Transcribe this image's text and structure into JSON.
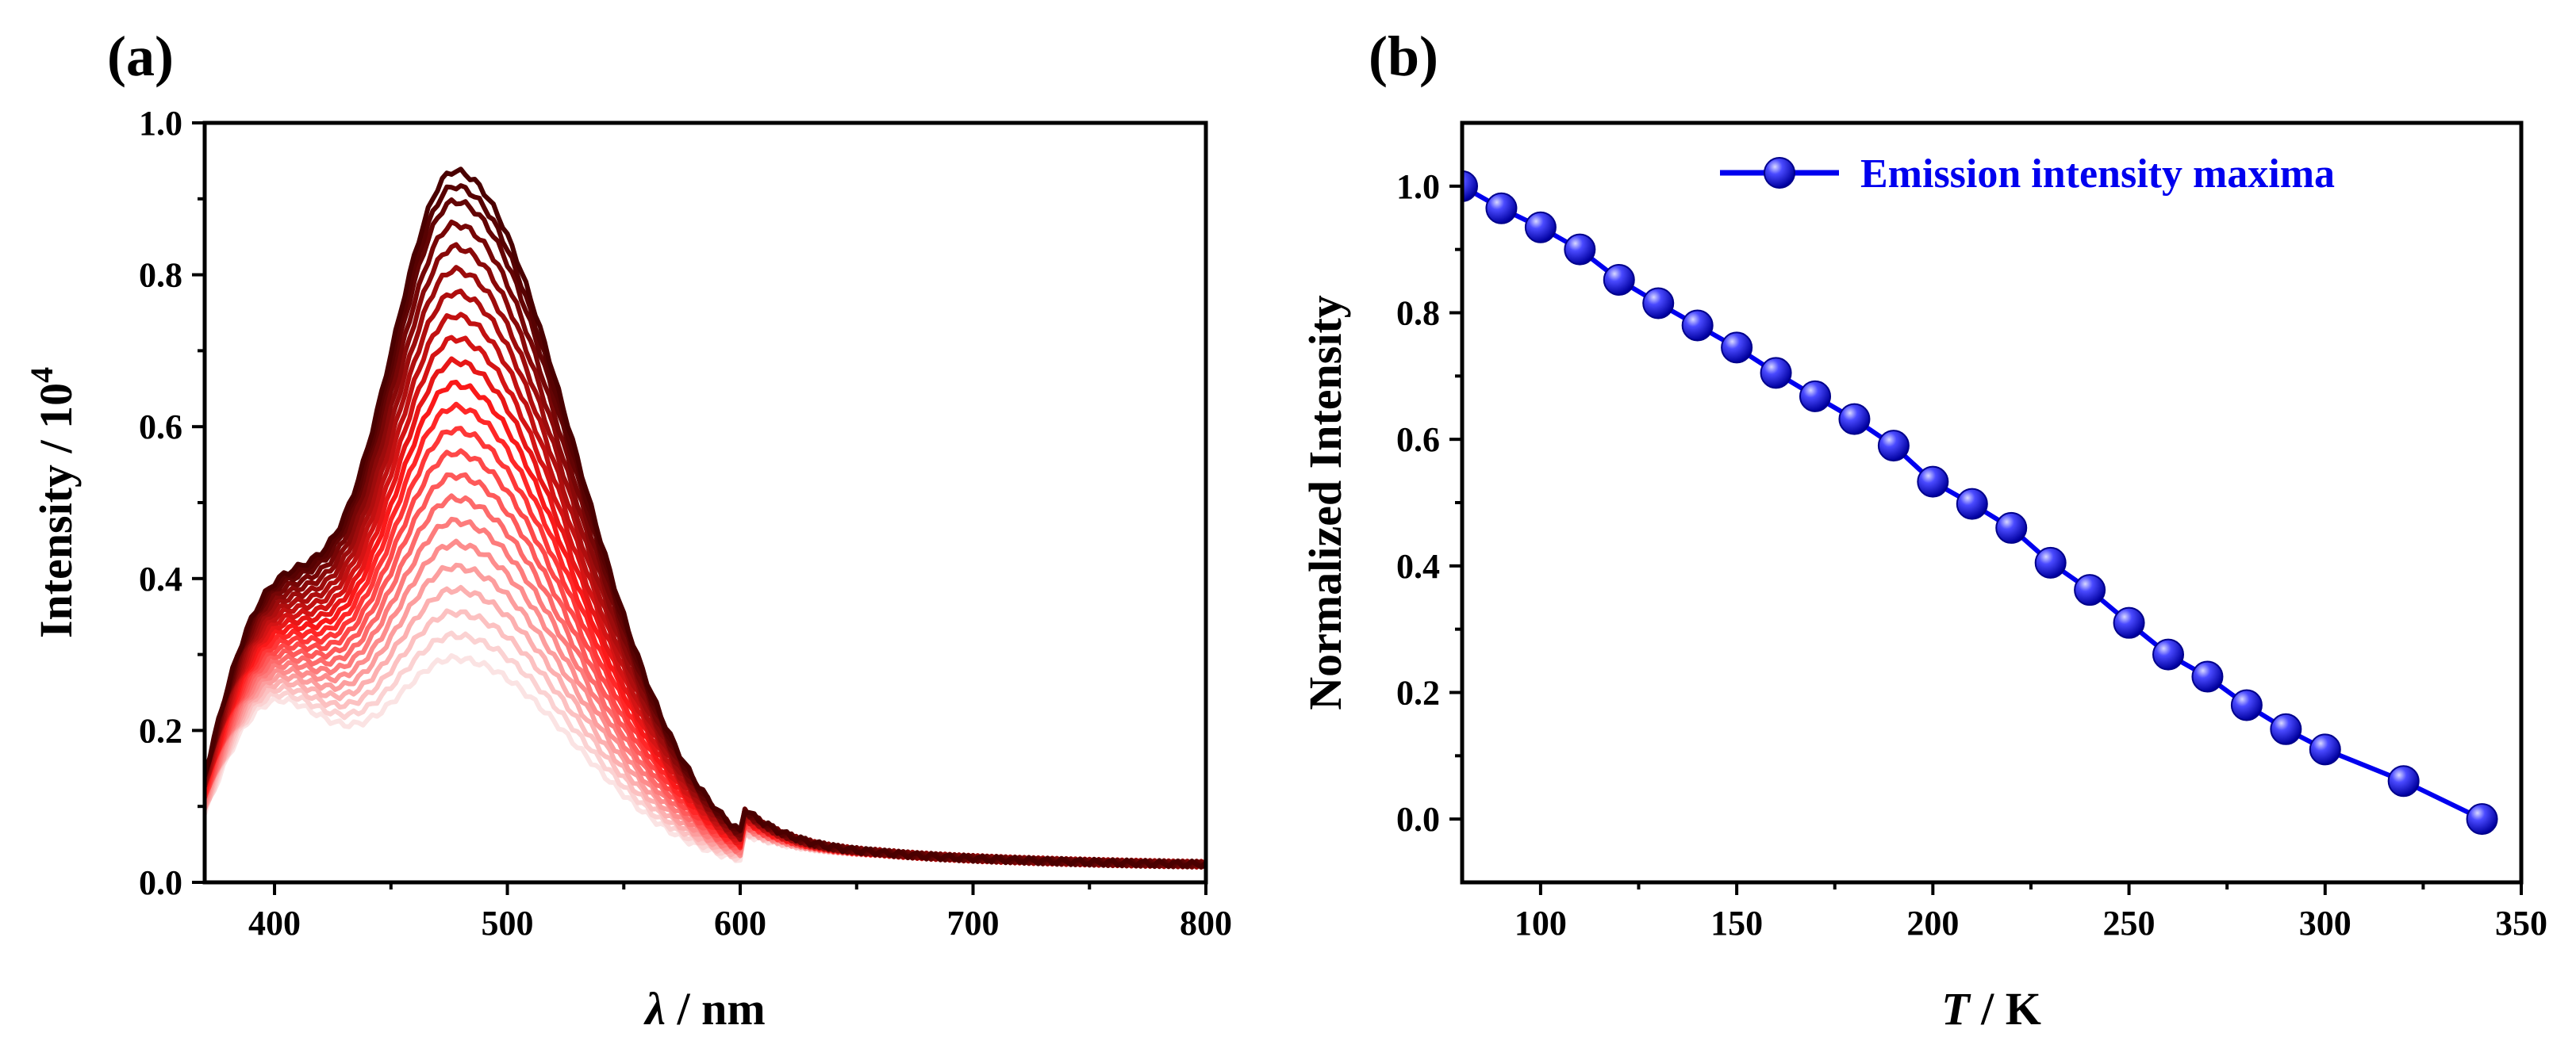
{
  "chart_data": [
    {
      "panel": "(a)",
      "type": "line",
      "title": "",
      "xlabel_symbol": "λ",
      "xlabel_unit": " / nm",
      "ylabel": "Intensity / 10",
      "ylabel_sup": "4",
      "xlim": [
        370,
        800
      ],
      "ylim": [
        0.0,
        1.0
      ],
      "xticks": [
        400,
        500,
        600,
        700,
        800
      ],
      "xtick_labels": [
        "400",
        "500",
        "600",
        "700",
        "800"
      ],
      "yticks": [
        0.0,
        0.2,
        0.4,
        0.6,
        0.8,
        1.0
      ],
      "ytick_labels": [
        "0.0",
        "0.2",
        "0.4",
        "0.6",
        "0.8",
        "1.0"
      ],
      "series_description": "Temperature-dependent emission spectra; curves shaded from light pink (low intensity) to dark red (high intensity)",
      "color_low": "#fbe3e3",
      "color_mid": "#ff1a1a",
      "color_high": "#4a0000",
      "peak_intensities": [
        0.29,
        0.32,
        0.35,
        0.38,
        0.41,
        0.44,
        0.47,
        0.5,
        0.53,
        0.56,
        0.59,
        0.62,
        0.65,
        0.68,
        0.71,
        0.74,
        0.77,
        0.8,
        0.83,
        0.86,
        0.89,
        0.91,
        0.93
      ],
      "shoulder_intensity_range": [
        0.24,
        0.37
      ],
      "shoulder_wavelength": 395,
      "peak_wavelength": 478,
      "tail_value_800nm": 0.02
    },
    {
      "panel": "(b)",
      "type": "line",
      "title": "",
      "xlabel_symbol": "T",
      "xlabel_unit": " / K",
      "ylabel": "Normalized Intensity",
      "xlim": [
        80,
        350
      ],
      "ylim": [
        -0.1,
        1.1
      ],
      "xticks": [
        100,
        150,
        200,
        250,
        300,
        350
      ],
      "xtick_labels": [
        "100",
        "150",
        "200",
        "250",
        "300",
        "350"
      ],
      "yticks": [
        0.0,
        0.2,
        0.4,
        0.6,
        0.8,
        1.0
      ],
      "ytick_labels": [
        "0.0",
        "0.2",
        "0.4",
        "0.6",
        "0.8",
        "1.0"
      ],
      "legend": "top-right",
      "series": [
        {
          "name": "Emission intensity maxima",
          "color": "#0000ee",
          "x": [
            80,
            90,
            100,
            110,
            120,
            130,
            140,
            150,
            160,
            170,
            180,
            190,
            200,
            210,
            220,
            230,
            240,
            250,
            260,
            270,
            280,
            290,
            300,
            320,
            340
          ],
          "y": [
            1.0,
            0.965,
            0.935,
            0.9,
            0.852,
            0.815,
            0.78,
            0.745,
            0.705,
            0.668,
            0.632,
            0.59,
            0.533,
            0.498,
            0.46,
            0.405,
            0.362,
            0.31,
            0.26,
            0.225,
            0.18,
            0.142,
            0.11,
            0.06,
            0.0
          ]
        }
      ]
    }
  ]
}
